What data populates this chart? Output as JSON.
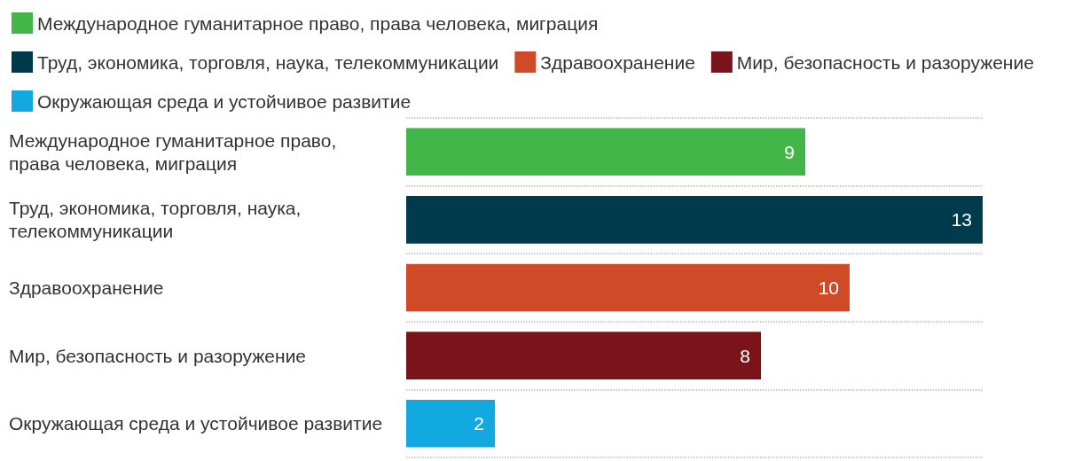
{
  "chart_data": {
    "type": "bar",
    "orientation": "horizontal",
    "data_labels": true,
    "legend": "top",
    "grid": "y",
    "tick_labels": "y",
    "categories": [
      "Международное гуманитарное право, права человека, миграция",
      "Труд, экономика, торговля, наука, телекоммуникации",
      "Здравоохранение",
      "Мир, безопасность и разоружение",
      "Окружающая среда и устойчивое развитие"
    ],
    "series": [
      {
        "name": "Международное гуманитарное право, права человека, миграция",
        "color": "#43b649",
        "values": [
          9,
          null,
          null,
          null,
          null
        ]
      },
      {
        "name": "Труд, экономика, торговля, наука, телекоммуникации",
        "color": "#003a4d",
        "values": [
          null,
          13,
          null,
          null,
          null
        ]
      },
      {
        "name": "Здравоохранение",
        "color": "#d04a27",
        "values": [
          null,
          null,
          10,
          null,
          null
        ]
      },
      {
        "name": "Мир, безопасность и разоружение",
        "color": "#7a141a",
        "values": [
          null,
          null,
          null,
          8,
          null
        ]
      },
      {
        "name": "Окружающая среда и устойчивое развитие",
        "color": "#12a9e0",
        "values": [
          null,
          null,
          null,
          null,
          2
        ]
      }
    ]
  }
}
